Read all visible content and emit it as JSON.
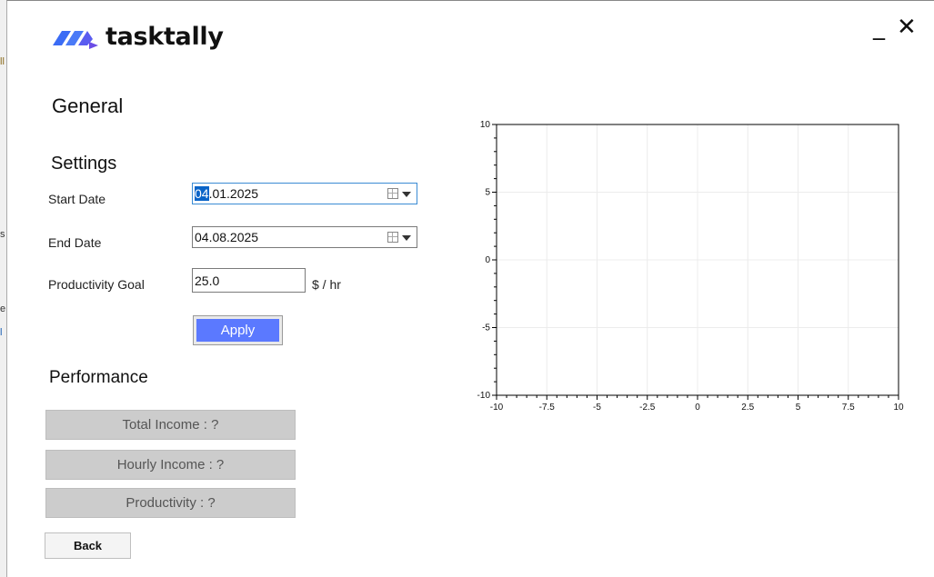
{
  "app": {
    "name": "tasktally"
  },
  "window_controls": {
    "minimize": "_",
    "close": "✕"
  },
  "background_fragments": [
    "ll",
    "s",
    "e",
    "l"
  ],
  "headings": {
    "general": "General",
    "settings": "Settings",
    "performance": "Performance"
  },
  "settings": {
    "start_date": {
      "label": "Start Date",
      "value_selected": "04",
      "value_rest": ".01.2025"
    },
    "end_date": {
      "label": "End Date",
      "value": "04.08.2025"
    },
    "productivity_goal": {
      "label": "Productivity Goal",
      "value": "25.0",
      "unit": "$ / hr"
    },
    "apply_label": "Apply"
  },
  "performance": {
    "total_income": "Total Income  :  ?",
    "hourly_income": "Hourly Income  :   ?",
    "productivity": "Productivity  :  ?"
  },
  "back_label": "Back",
  "colors": {
    "accent": "#5b79ff",
    "logo_blue": "#3b6cf5",
    "logo_purple": "#6b4de6",
    "metric_bg": "#cccccc"
  },
  "chart_data": {
    "type": "scatter",
    "series": [],
    "xlim": [
      -10,
      10
    ],
    "ylim": [
      -10,
      10
    ],
    "x_ticks": [
      "-10",
      "-7.5",
      "-5",
      "-2.5",
      "0",
      "2.5",
      "5",
      "7.5",
      "10"
    ],
    "y_ticks": [
      "10",
      "5",
      "0",
      "-5",
      "-10"
    ],
    "grid": true
  }
}
